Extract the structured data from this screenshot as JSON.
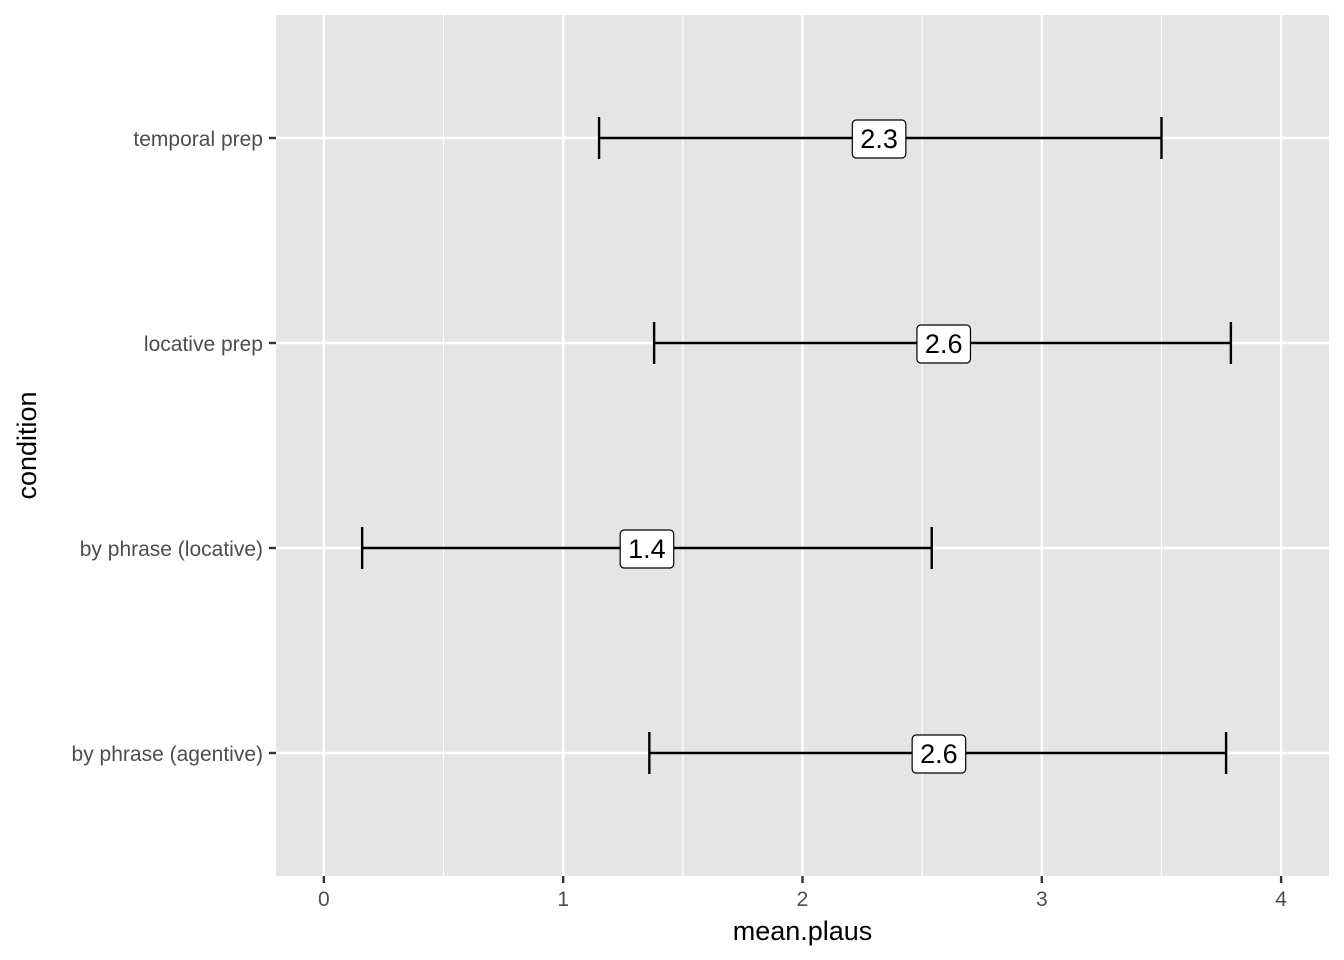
{
  "chart_data": {
    "type": "errorbar",
    "orientation": "horizontal",
    "xlabel": "mean.plaus",
    "ylabel": "condition",
    "xlim": [
      -0.2,
      4.2
    ],
    "x_ticks": [
      0,
      1,
      2,
      3,
      4
    ],
    "x_tick_labels": [
      "0",
      "1",
      "2",
      "3",
      "4"
    ],
    "grid": true,
    "legend": "none",
    "categories": [
      "by phrase (agentive)",
      "by phrase (locative)",
      "locative prep",
      "temporal prep"
    ],
    "series": [
      {
        "values": [
          2.57,
          1.35,
          2.59,
          2.32
        ],
        "lower": [
          1.36,
          0.16,
          1.38,
          1.15
        ],
        "upper": [
          3.77,
          2.54,
          3.79,
          3.5
        ],
        "labels": [
          "2.6",
          "1.4",
          "2.6",
          "2.3"
        ]
      }
    ],
    "colors": {
      "panel_background": "#e5e5e5",
      "grid_major": "#ffffff",
      "errorbar": "#000000",
      "label_fill": "#ffffff"
    }
  }
}
